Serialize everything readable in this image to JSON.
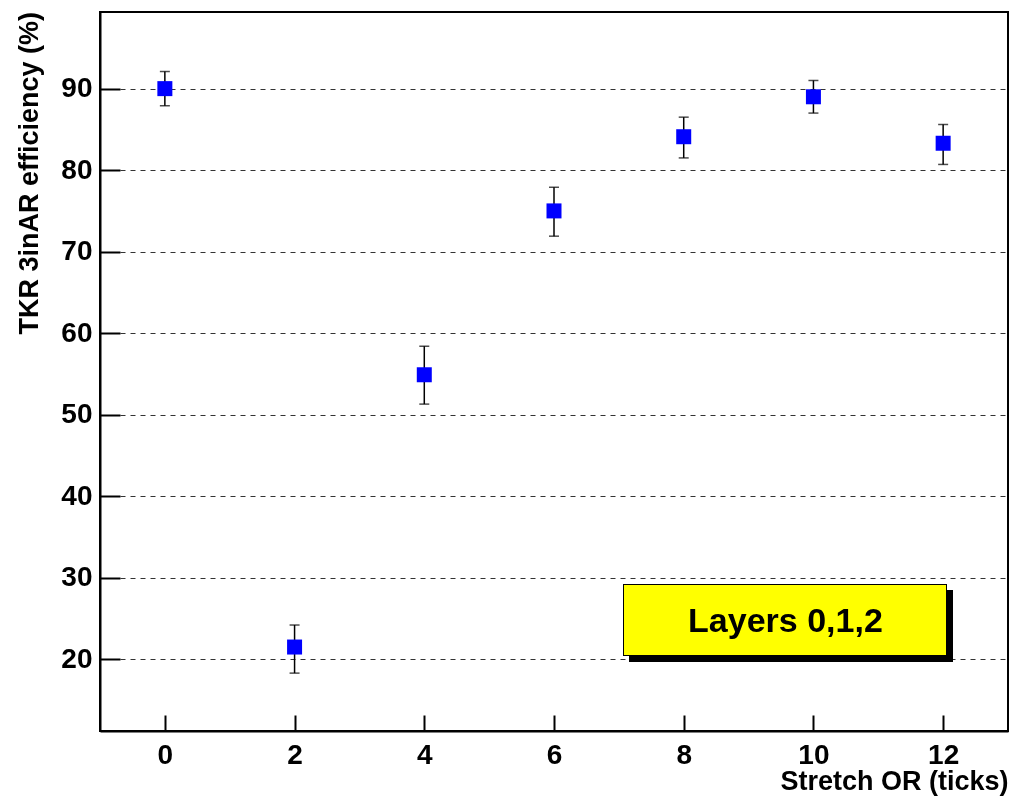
{
  "chart_data": {
    "type": "scatter",
    "xlabel": "Stretch OR (ticks)",
    "ylabel": "TKR 3inAR efficiency (%)",
    "annotations": [
      "Layers 0,1,2"
    ],
    "x": [
      0,
      2,
      4,
      6,
      8,
      10,
      12
    ],
    "series": [
      {
        "color": "#0000ff",
        "values": [
          90.0,
          21.5,
          54.9,
          75.0,
          84.1,
          89.0,
          83.3
        ],
        "errors": [
          [
            87.9,
            92.1
          ],
          [
            18.3,
            24.2
          ],
          [
            51.3,
            58.4
          ],
          [
            71.9,
            77.9
          ],
          [
            81.5,
            86.5
          ],
          [
            87.0,
            91.0
          ],
          [
            80.7,
            85.6
          ]
        ]
      }
    ],
    "xlim": [
      -1,
      13
    ],
    "ylim": [
      11.2,
      99.4
    ],
    "xticks": [
      0,
      2,
      4,
      6,
      8,
      10,
      12
    ],
    "yticks": [
      20,
      30,
      40,
      50,
      60,
      70,
      80,
      90
    ],
    "grid": "y",
    "marker": "square"
  }
}
